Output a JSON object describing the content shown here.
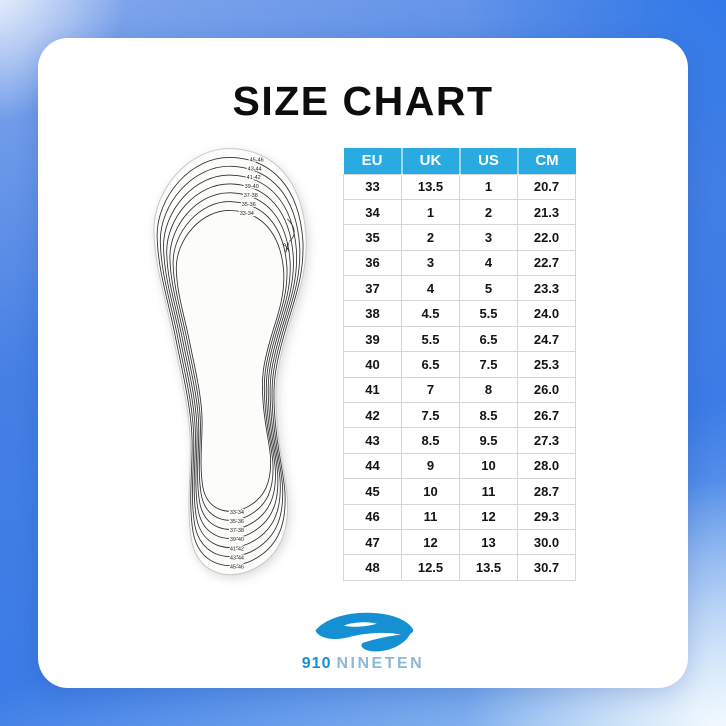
{
  "page": {
    "title": "SIZE CHART"
  },
  "brand": {
    "number": "910",
    "name": "NINETEN"
  },
  "colors": {
    "table_header_blue": "#29ABE2",
    "background_blue": "#3C7CE6",
    "logo_blue": "#1590D2",
    "logo_text_light_blue": "#8CB9D8",
    "card_white": "#FFFFFF"
  },
  "chart_data": {
    "type": "table",
    "title": "SIZE CHART",
    "columns": [
      "EU",
      "UK",
      "US",
      "CM"
    ],
    "rows": [
      [
        "33",
        "13.5",
        "1",
        "20.7"
      ],
      [
        "34",
        "1",
        "2",
        "21.3"
      ],
      [
        "35",
        "2",
        "3",
        "22.0"
      ],
      [
        "36",
        "3",
        "4",
        "22.7"
      ],
      [
        "37",
        "4",
        "5",
        "23.3"
      ],
      [
        "38",
        "4.5",
        "5.5",
        "24.0"
      ],
      [
        "39",
        "5.5",
        "6.5",
        "24.7"
      ],
      [
        "40",
        "6.5",
        "7.5",
        "25.3"
      ],
      [
        "41",
        "7",
        "8",
        "26.0"
      ],
      [
        "42",
        "7.5",
        "8.5",
        "26.7"
      ],
      [
        "43",
        "8.5",
        "9.5",
        "27.3"
      ],
      [
        "44",
        "9",
        "10",
        "28.0"
      ],
      [
        "45",
        "10",
        "11",
        "28.7"
      ],
      [
        "46",
        "11",
        "12",
        "29.3"
      ],
      [
        "47",
        "12",
        "13",
        "30.0"
      ],
      [
        "48",
        "12.5",
        "13.5",
        "30.7"
      ]
    ]
  },
  "insole": {
    "toe_labels": [
      "45-46",
      "43-44",
      "41-42",
      "39-40",
      "37-38",
      "35-36",
      "33-34"
    ],
    "heel_labels": [
      "33-34",
      "35-36",
      "37-38",
      "39-40",
      "41-42",
      "43-44",
      "45-46"
    ],
    "scissors_icon": "✂"
  }
}
